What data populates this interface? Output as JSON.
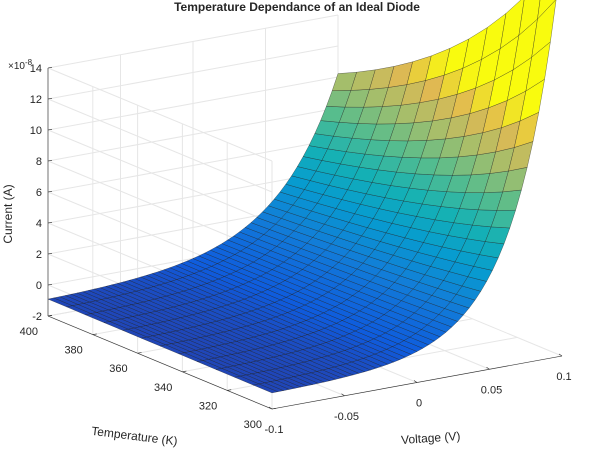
{
  "chart_data": {
    "type": "surface",
    "title": "Temperature Dependance of an Ideal Diode",
    "xlabel": "Voltage (V)",
    "ylabel": "Temperature (K)",
    "zlabel": "Current (A)",
    "z_exponent_label": "×10",
    "z_exponent_power": "-8",
    "xlim": [
      -0.1,
      0.1
    ],
    "ylim": [
      300,
      400
    ],
    "zlim": [
      -2e-08,
      1.4e-07
    ],
    "xticks": [
      -0.1,
      -0.05,
      0,
      0.05,
      0.1
    ],
    "xtick_labels": [
      "-0.1",
      "-0.05",
      "0",
      "0.05",
      "0.1"
    ],
    "yticks": [
      300,
      320,
      340,
      360,
      380,
      400
    ],
    "ytick_labels": [
      "300",
      "320",
      "340",
      "360",
      "380",
      "400"
    ],
    "zticks": [
      -2e-08,
      0,
      2e-08,
      4e-08,
      6e-08,
      8e-08,
      1e-07,
      1.2e-07,
      1.4e-07
    ],
    "ztick_labels": [
      "-2",
      "0",
      "2",
      "4",
      "6",
      "8",
      "10",
      "12",
      "14"
    ],
    "grid": true,
    "colormap": "parula",
    "surface_samples": {
      "voltage": [
        -0.1,
        -0.05,
        0,
        0.05,
        0.1
      ],
      "temperature": [
        300,
        400
      ],
      "current_at_300K": [
        -1e-08,
        -7e-09,
        0,
        1.7e-08,
        5.5e-08
      ],
      "current_at_400K": [
        -1e-08,
        -7e-09,
        0,
        2.2e-08,
        1.05e-07
      ]
    },
    "surface_model": "I = Is*(exp(V/(n*k*T/q)) - 1), Is = 1e-8 A, n = 1.2"
  }
}
